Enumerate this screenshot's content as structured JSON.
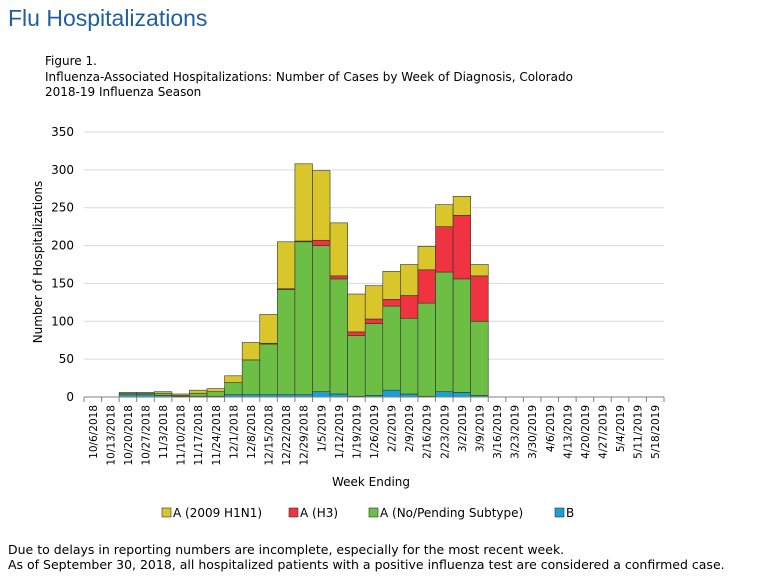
{
  "page": {
    "title": "Flu Hospitalizations"
  },
  "figure": {
    "number": "Figure 1.",
    "title_line1": "Influenza-Associated Hospitalizations: Number of  Cases by Week of Diagnosis, Colorado",
    "title_line2": "2018-19  Influenza Season"
  },
  "footnotes": {
    "line1": "Due to delays in reporting numbers are incomplete, especially for the most recent week.",
    "line2": "As of September 30, 2018, all hospitalized patients with a positive influenza test are considered a confirmed case."
  },
  "colors": {
    "b": "#1aa0d8",
    "a_no_subtype": "#6cbe45",
    "a_h3": "#ef3340",
    "a_h1n1": "#d9c62b",
    "grid": "#d9d9d9"
  },
  "chart_data": {
    "type": "bar",
    "stacked": true,
    "title": "",
    "xlabel": "Week Ending",
    "ylabel": "Number of Hospitalizations",
    "ylim": [
      0,
      350
    ],
    "yticks": [
      0,
      50,
      100,
      150,
      200,
      250,
      300,
      350
    ],
    "grid": true,
    "legend_position": "bottom",
    "categories": [
      "10/6/2018",
      "10/13/2018",
      "10/20/2018",
      "10/27/2018",
      "11/3/2018",
      "11/10/2018",
      "11/17/2018",
      "11/24/2018",
      "12/1/2018",
      "12/8/2018",
      "12/15/2018",
      "12/22/2018",
      "12/29/2018",
      "1/5/2019",
      "1/12/2019",
      "1/19/2019",
      "1/26/2019",
      "2/2/2019",
      "2/9/2019",
      "2/16/2019",
      "2/23/2019",
      "3/2/2019",
      "3/9/2019",
      "3/16/2019",
      "3/23/2019",
      "3/30/2019",
      "4/6/2019",
      "4/13/2019",
      "4/20/2019",
      "4/27/2019",
      "5/4/2019",
      "5/11/2019",
      "5/18/2019"
    ],
    "series": [
      {
        "name": "B",
        "values": [
          0,
          0,
          3,
          3,
          2,
          1,
          1,
          1,
          3,
          3,
          3,
          3,
          3,
          7,
          4,
          1,
          2,
          9,
          4,
          1,
          7,
          6,
          2,
          0,
          0,
          0,
          0,
          0,
          0,
          0,
          0,
          0,
          0
        ]
      },
      {
        "name": "A (No/Pending Subtype)",
        "values": [
          0,
          0,
          2,
          2,
          3,
          1,
          4,
          6,
          16,
          46,
          67,
          139,
          202,
          193,
          152,
          80,
          95,
          111,
          100,
          123,
          158,
          150,
          98,
          0,
          0,
          0,
          0,
          0,
          0,
          0,
          0,
          0,
          0
        ]
      },
      {
        "name": "A (H3)",
        "values": [
          0,
          0,
          0,
          0,
          0,
          0,
          0,
          0,
          0,
          0,
          1,
          1,
          1,
          7,
          4,
          5,
          6,
          9,
          30,
          44,
          60,
          84,
          60,
          0,
          0,
          0,
          0,
          0,
          0,
          0,
          0,
          0,
          0
        ]
      },
      {
        "name": "A (2009 H1N1)",
        "values": [
          0,
          0,
          1,
          1,
          2,
          2,
          4,
          4,
          9,
          23,
          38,
          62,
          102,
          92,
          70,
          50,
          44,
          37,
          41,
          31,
          29,
          25,
          15,
          0,
          0,
          0,
          0,
          0,
          0,
          0,
          0,
          0,
          0
        ]
      }
    ],
    "legend": [
      "A (2009 H1N1)",
      "A (H3)",
      "A (No/Pending Subtype)",
      "B"
    ]
  }
}
